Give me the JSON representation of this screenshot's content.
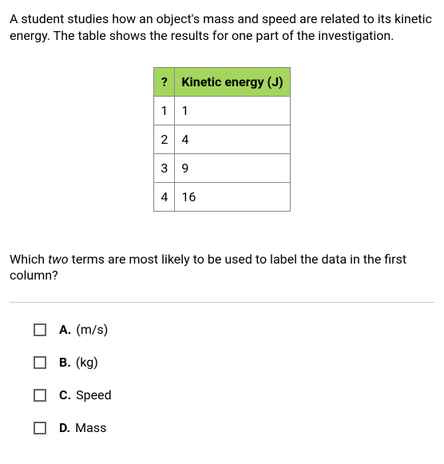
{
  "intro": "A student studies how an object's mass and speed are related to its kinetic energy. The table shows the results for one part of the investigation.",
  "table": {
    "header_bg": "#a4d65e",
    "border_color": "#888888",
    "headers": [
      "?",
      "Kinetic energy (J)"
    ],
    "rows": [
      [
        "1",
        "1"
      ],
      [
        "2",
        "4"
      ],
      [
        "3",
        "9"
      ],
      [
        "4",
        "16"
      ]
    ]
  },
  "question": {
    "pre": "Which ",
    "italic": "two",
    "post": " terms are most likely to be used to label the data in the first column?"
  },
  "options": [
    {
      "letter": "A.",
      "text": "(m/s)"
    },
    {
      "letter": "B.",
      "text": "(kg)"
    },
    {
      "letter": "C.",
      "text": "Speed"
    },
    {
      "letter": "D.",
      "text": "Mass"
    }
  ]
}
